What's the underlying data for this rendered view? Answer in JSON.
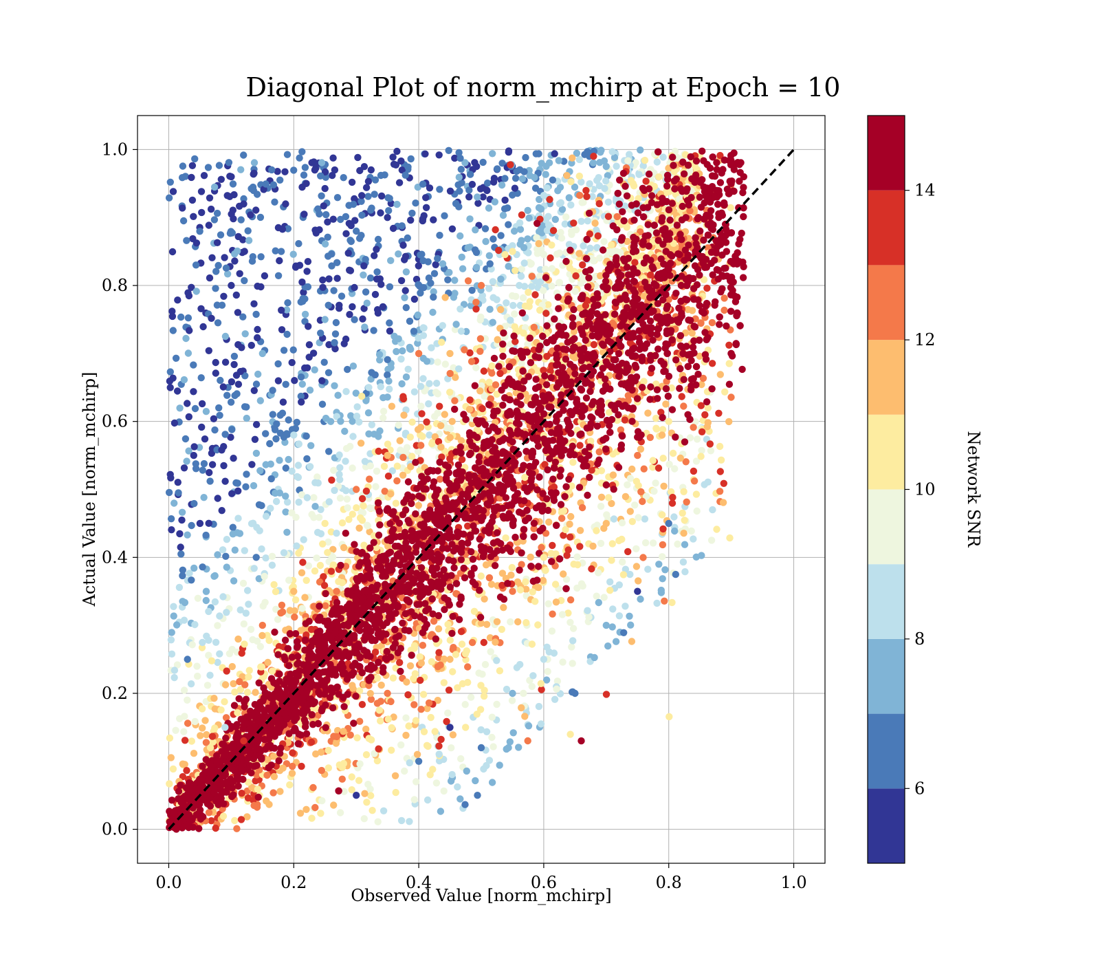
{
  "chart_data": {
    "type": "scatter",
    "title": "Diagonal Plot of norm_mchirp at Epoch = 10",
    "xlabel": "Observed Value [norm_mchirp]",
    "ylabel": "Actual Value [norm_mchirp]",
    "xlim": [
      -0.05,
      1.05
    ],
    "ylim": [
      -0.05,
      1.05
    ],
    "xticks": [
      0.0,
      0.2,
      0.4,
      0.6,
      0.8,
      1.0
    ],
    "yticks": [
      0.0,
      0.2,
      0.4,
      0.6,
      0.8,
      1.0
    ],
    "xtick_labels": [
      "0.0",
      "0.2",
      "0.4",
      "0.6",
      "0.8",
      "1.0"
    ],
    "ytick_labels": [
      "0.0",
      "0.2",
      "0.4",
      "0.6",
      "0.8",
      "1.0"
    ],
    "grid": true,
    "reference_line": {
      "x": [
        0.0,
        1.0
      ],
      "y": [
        0.0,
        1.0
      ],
      "style": "dashed",
      "color": "#000000"
    },
    "colorbar": {
      "label": "Network SNR",
      "range": [
        5,
        15
      ],
      "ticks": [
        6,
        8,
        10,
        12,
        14
      ],
      "tick_labels": [
        "6",
        "8",
        "10",
        "12",
        "14"
      ],
      "bins": [
        {
          "from": 5,
          "to": 6,
          "color": "#313695"
        },
        {
          "from": 6,
          "to": 7,
          "color": "#4a7ab8"
        },
        {
          "from": 7,
          "to": 8,
          "color": "#80b4d6"
        },
        {
          "from": 8,
          "to": 9,
          "color": "#bde0ec"
        },
        {
          "from": 9,
          "to": 10,
          "color": "#eef6df"
        },
        {
          "from": 10,
          "to": 11,
          "color": "#fdeca0"
        },
        {
          "from": 11,
          "to": 12,
          "color": "#fdbd6f"
        },
        {
          "from": 12,
          "to": 13,
          "color": "#f4794a"
        },
        {
          "from": 13,
          "to": 14,
          "color": "#d73027"
        },
        {
          "from": 14,
          "to": 15,
          "color": "#a50026"
        }
      ]
    },
    "points_sample": [
      [
        0.02,
        0.04,
        14.5
      ],
      [
        0.05,
        0.06,
        14.2
      ],
      [
        0.08,
        0.1,
        14.8
      ],
      [
        0.1,
        0.12,
        14.0
      ],
      [
        0.12,
        0.13,
        13.2
      ],
      [
        0.15,
        0.16,
        14.6
      ],
      [
        0.18,
        0.2,
        14.9
      ],
      [
        0.2,
        0.22,
        14.3
      ],
      [
        0.22,
        0.2,
        14.7
      ],
      [
        0.25,
        0.27,
        14.5
      ],
      [
        0.28,
        0.3,
        14.8
      ],
      [
        0.3,
        0.33,
        14.4
      ],
      [
        0.33,
        0.3,
        14.9
      ],
      [
        0.35,
        0.38,
        14.6
      ],
      [
        0.38,
        0.4,
        14.7
      ],
      [
        0.4,
        0.42,
        14.9
      ],
      [
        0.42,
        0.4,
        14.5
      ],
      [
        0.45,
        0.47,
        14.8
      ],
      [
        0.48,
        0.5,
        14.6
      ],
      [
        0.5,
        0.53,
        14.9
      ],
      [
        0.52,
        0.5,
        14.7
      ],
      [
        0.55,
        0.57,
        14.8
      ],
      [
        0.58,
        0.6,
        14.9
      ],
      [
        0.6,
        0.63,
        14.5
      ],
      [
        0.62,
        0.6,
        14.8
      ],
      [
        0.65,
        0.67,
        14.9
      ],
      [
        0.68,
        0.7,
        14.6
      ],
      [
        0.7,
        0.73,
        14.9
      ],
      [
        0.72,
        0.7,
        14.7
      ],
      [
        0.75,
        0.78,
        14.8
      ],
      [
        0.78,
        0.8,
        14.9
      ],
      [
        0.8,
        0.83,
        14.6
      ],
      [
        0.82,
        0.8,
        14.8
      ],
      [
        0.85,
        0.88,
        14.9
      ],
      [
        0.88,
        0.9,
        14.7
      ],
      [
        0.9,
        0.95,
        14.5
      ],
      [
        0.92,
        0.96,
        14.8
      ],
      [
        0.15,
        0.3,
        12.5
      ],
      [
        0.2,
        0.35,
        11.5
      ],
      [
        0.25,
        0.45,
        10.5
      ],
      [
        0.3,
        0.5,
        12.0
      ],
      [
        0.35,
        0.55,
        11.0
      ],
      [
        0.4,
        0.7,
        12.8
      ],
      [
        0.45,
        0.7,
        11.3
      ],
      [
        0.5,
        0.8,
        12.2
      ],
      [
        0.55,
        0.85,
        10.4
      ],
      [
        0.35,
        0.2,
        12.6
      ],
      [
        0.45,
        0.25,
        11.7
      ],
      [
        0.55,
        0.35,
        12.3
      ],
      [
        0.6,
        0.4,
        10.8
      ],
      [
        0.7,
        0.45,
        11.9
      ],
      [
        0.75,
        0.55,
        12.4
      ],
      [
        0.8,
        0.6,
        10.6
      ],
      [
        0.05,
        0.45,
        5.5
      ],
      [
        0.08,
        0.62,
        6.4
      ],
      [
        0.1,
        0.8,
        5.3
      ],
      [
        0.12,
        0.92,
        5.8
      ],
      [
        0.15,
        0.7,
        7.5
      ],
      [
        0.18,
        0.85,
        6.2
      ],
      [
        0.2,
        0.58,
        8.3
      ],
      [
        0.22,
        0.95,
        5.4
      ],
      [
        0.25,
        0.75,
        7.1
      ],
      [
        0.3,
        0.88,
        6.7
      ],
      [
        0.32,
        0.65,
        8.6
      ],
      [
        0.35,
        0.9,
        5.6
      ],
      [
        0.38,
        0.82,
        7.8
      ],
      [
        0.03,
        0.25,
        6.1
      ],
      [
        0.06,
        0.35,
        7.3
      ],
      [
        0.09,
        0.15,
        8.5
      ],
      [
        0.04,
        0.55,
        5.2
      ],
      [
        0.14,
        0.4,
        6.9
      ],
      [
        0.1,
        0.96,
        5.1
      ],
      [
        0.3,
        0.05,
        5.9
      ],
      [
        0.4,
        0.1,
        6.5
      ],
      [
        0.45,
        0.15,
        5.4
      ],
      [
        0.5,
        0.12,
        6.2
      ],
      [
        0.55,
        0.2,
        7.4
      ],
      [
        0.6,
        0.25,
        8.4
      ],
      [
        0.65,
        0.2,
        6.0
      ],
      [
        0.7,
        0.3,
        7.2
      ],
      [
        0.75,
        0.35,
        5.7
      ],
      [
        0.8,
        0.45,
        6.3
      ],
      [
        0.66,
        0.13,
        14.6
      ]
    ]
  }
}
